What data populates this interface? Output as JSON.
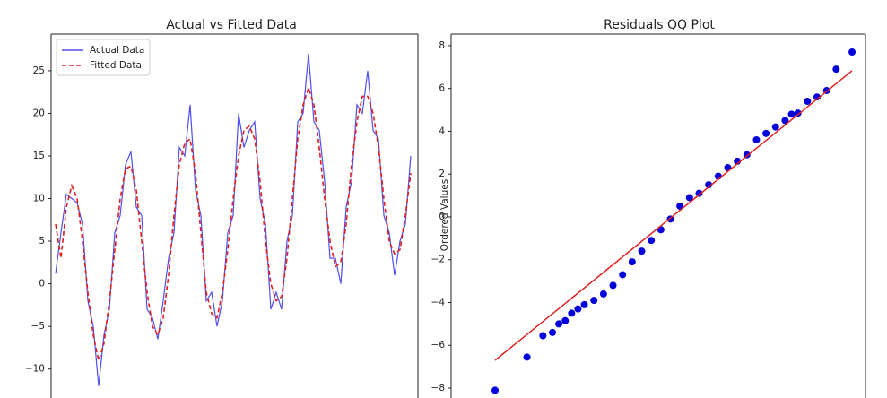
{
  "chart_data": [
    {
      "type": "line",
      "title": "Actual vs Fitted Data",
      "legend": "upper left",
      "xlim": [
        -0.83,
        67.33
      ],
      "ylim": [
        -13.4,
        29.3
      ],
      "yticks": [
        {
          "value": -10,
          "label": "−10"
        },
        {
          "value": -5,
          "label": "−5"
        },
        0,
        5,
        10,
        15,
        20,
        25
      ],
      "series": [
        {
          "name": "Actual Data",
          "color": "#4f4ff0",
          "linestyle": "solid",
          "values": [
            1.2,
            6,
            10.5,
            10,
            9.5,
            7,
            -2,
            -5,
            -12,
            -6,
            -3,
            6,
            8,
            14,
            15.5,
            9,
            8,
            -3,
            -4,
            -6.5,
            -2,
            3,
            6,
            16,
            15,
            21,
            11,
            8,
            -2,
            -1,
            -5,
            -2,
            6,
            8,
            20,
            16,
            18,
            19,
            10,
            7,
            -3,
            -1,
            -3,
            5,
            8,
            19,
            20,
            27,
            19,
            18,
            12,
            3,
            3,
            0,
            9,
            12,
            21,
            20,
            25,
            18,
            17,
            8,
            6,
            1,
            5,
            7,
            15
          ]
        },
        {
          "name": "Fitted Data",
          "color": "#e02020",
          "linestyle": "dashed",
          "values": [
            7,
            3,
            9,
            11.5,
            10,
            5,
            -1,
            -6,
            -9,
            -7,
            -2,
            4,
            10,
            13.5,
            13.8,
            11,
            5,
            -1,
            -5,
            -6,
            -4,
            1,
            8,
            14,
            16.5,
            17,
            13,
            6,
            -1,
            -3.5,
            -4,
            -1,
            4,
            10,
            15,
            18,
            18.5,
            17,
            12,
            5,
            0,
            -2,
            -1.5,
            3,
            10,
            17,
            21,
            23,
            21,
            16,
            10,
            5,
            2,
            2.5,
            7,
            14,
            19,
            22,
            22,
            20,
            16,
            10,
            5,
            3.5,
            4,
            8,
            13
          ]
        }
      ]
    },
    {
      "type": "scatter",
      "title": "Residuals QQ Plot",
      "ylabel": "Ordered Values",
      "xlim": [
        -3.49,
        3.01
      ],
      "ylim": [
        -8.46,
        8.54
      ],
      "yticks": [
        {
          "value": -8,
          "label": "−8"
        },
        {
          "value": -6,
          "label": "−6"
        },
        {
          "value": -4,
          "label": "−4"
        },
        {
          "value": -2,
          "label": "−2"
        },
        0,
        2,
        4,
        6,
        8
      ],
      "color": "#0000dd",
      "x": [
        -2.8,
        -2.3,
        -2.05,
        -1.9,
        -1.8,
        -1.7,
        -1.6,
        -1.5,
        -1.4,
        -1.25,
        -1.1,
        -0.95,
        -0.8,
        -0.65,
        -0.5,
        -0.35,
        -0.2,
        -0.05,
        0.1,
        0.25,
        0.4,
        0.55,
        0.7,
        0.85,
        1.0,
        1.15,
        1.3,
        1.45,
        1.6,
        1.75,
        1.85,
        1.95,
        2.1,
        2.25,
        2.4,
        2.55,
        2.8
      ],
      "values": [
        -8.1,
        -6.55,
        -5.55,
        -5.4,
        -5.0,
        -4.85,
        -4.5,
        -4.3,
        -4.1,
        -3.9,
        -3.6,
        -3.2,
        -2.7,
        -2.1,
        -1.6,
        -1.1,
        -0.6,
        -0.1,
        0.5,
        0.9,
        1.1,
        1.5,
        1.9,
        2.3,
        2.6,
        2.9,
        3.6,
        3.9,
        4.2,
        4.5,
        4.8,
        4.85,
        5.4,
        5.6,
        5.9,
        6.9,
        7.7
      ],
      "fit": {
        "color": "#e02020",
        "x": [
          -2.8,
          2.8
        ],
        "values": [
          -6.7,
          6.83
        ]
      }
    }
  ]
}
